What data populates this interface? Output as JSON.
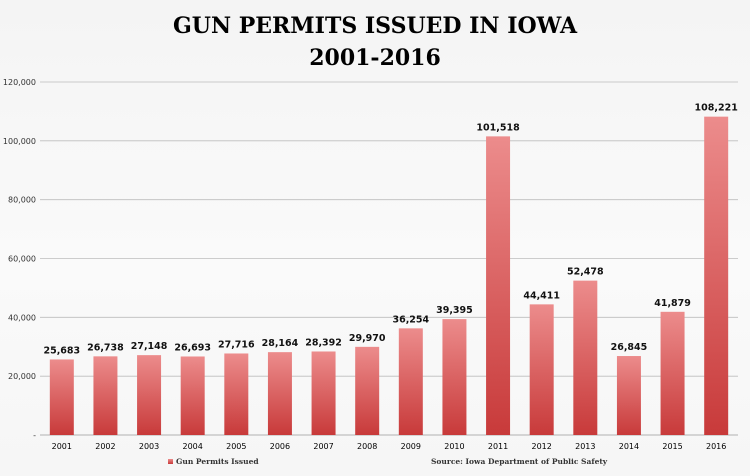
{
  "chart_data": {
    "type": "bar",
    "title": "GUN PERMITS ISSUED IN IOWA",
    "subtitle": "2001-2016",
    "categories": [
      "2001",
      "2002",
      "2003",
      "2004",
      "2005",
      "2006",
      "2007",
      "2008",
      "2009",
      "2010",
      "2011",
      "2012",
      "2013",
      "2014",
      "2015",
      "2016"
    ],
    "series": [
      {
        "name": "Gun Permits Issued",
        "values": [
          25683,
          26738,
          27148,
          26693,
          27716,
          28164,
          28392,
          29970,
          36254,
          39395,
          101518,
          44411,
          52478,
          26845,
          41879,
          108221
        ],
        "labels": [
          "25,683",
          "26,738",
          "27,148",
          "26,693",
          "27,716",
          "28,164",
          "28,392",
          "29,970",
          "36,254",
          "39,395",
          "101,518",
          "44,411",
          "52,478",
          "26,845",
          "41,879",
          "108,221"
        ]
      }
    ],
    "yticks": [
      "-",
      "20,000",
      "40,000",
      "60,000",
      "80,000",
      "100,000",
      "120,000"
    ],
    "ylim": [
      0,
      120000
    ],
    "grid": true,
    "legend_position": "bottom-left",
    "source": "Source: Iowa Department of Public Safety",
    "colors": {
      "bar_top": "#e87e7e",
      "bar_bottom": "#c93a3a",
      "grid": "#bdbdbd",
      "axis": "#9a9a9a"
    }
  }
}
